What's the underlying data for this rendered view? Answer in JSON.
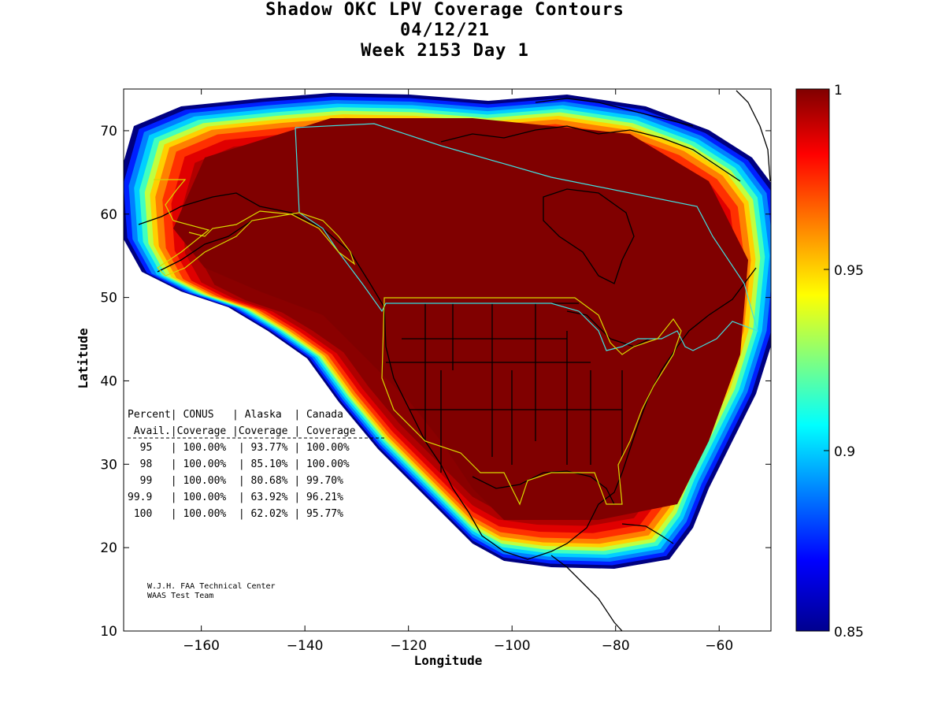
{
  "title": {
    "line1": "Shadow OKC LPV Coverage Contours",
    "line2": "04/12/21",
    "line3": "Week 2153 Day 1"
  },
  "axes": {
    "xlabel": "Longitude",
    "ylabel": "Latitude",
    "xlim": [
      -175,
      -50
    ],
    "ylim": [
      10,
      75
    ],
    "xticks": [
      -160,
      -140,
      -120,
      -100,
      -80,
      -60
    ],
    "yticks": [
      10,
      20,
      30,
      40,
      50,
      60,
      70
    ]
  },
  "colorbar": {
    "range": [
      0.85,
      1
    ],
    "ticks": [
      "1",
      "0.95",
      "0.9",
      "0.85"
    ],
    "colormap": [
      "#00008f",
      "#0000ff",
      "#00ffff",
      "#ffff00",
      "#ff8000",
      "#ff0000",
      "#800000"
    ]
  },
  "table": {
    "header1": "Percent| CONUS   | Alaska  | Canada",
    "header2": " Avail.|Coverage |Coverage | Coverage",
    "rows": [
      "  95   | 100.00%  | 93.77% | 100.00%",
      "  98   | 100.00%  | 85.10% | 100.00%",
      "  99   | 100.00%  | 80.68% | 99.70%",
      "99.9   | 100.00%  | 63.92% | 96.21%",
      " 100   | 100.00%  | 62.02% | 95.77%"
    ]
  },
  "credits": {
    "line1": "W.J.H. FAA Technical Center",
    "line2": "WAAS Test Team"
  },
  "chart_data": {
    "type": "heatmap",
    "title": "Shadow OKC LPV Coverage Contours",
    "xlabel": "Longitude",
    "ylabel": "Latitude",
    "xlim": [
      -175,
      -50
    ],
    "ylim": [
      10,
      75
    ],
    "value_range": [
      0.85,
      1
    ],
    "grid": false,
    "legend": "colorbar-right",
    "coverage_table": {
      "columns": [
        "Percent Avail.",
        "CONUS Coverage",
        "Alaska Coverage",
        "Canada Coverage"
      ],
      "rows": [
        [
          "95",
          "100.00%",
          "93.77%",
          "100.00%"
        ],
        [
          "98",
          "100.00%",
          "85.10%",
          "100.00%"
        ],
        [
          "99",
          "100.00%",
          "80.68%",
          "99.70%"
        ],
        [
          "99.9",
          "100.00%",
          "63.92%",
          "96.21%"
        ],
        [
          "100",
          "100.00%",
          "62.02%",
          "95.77%"
        ]
      ]
    }
  }
}
